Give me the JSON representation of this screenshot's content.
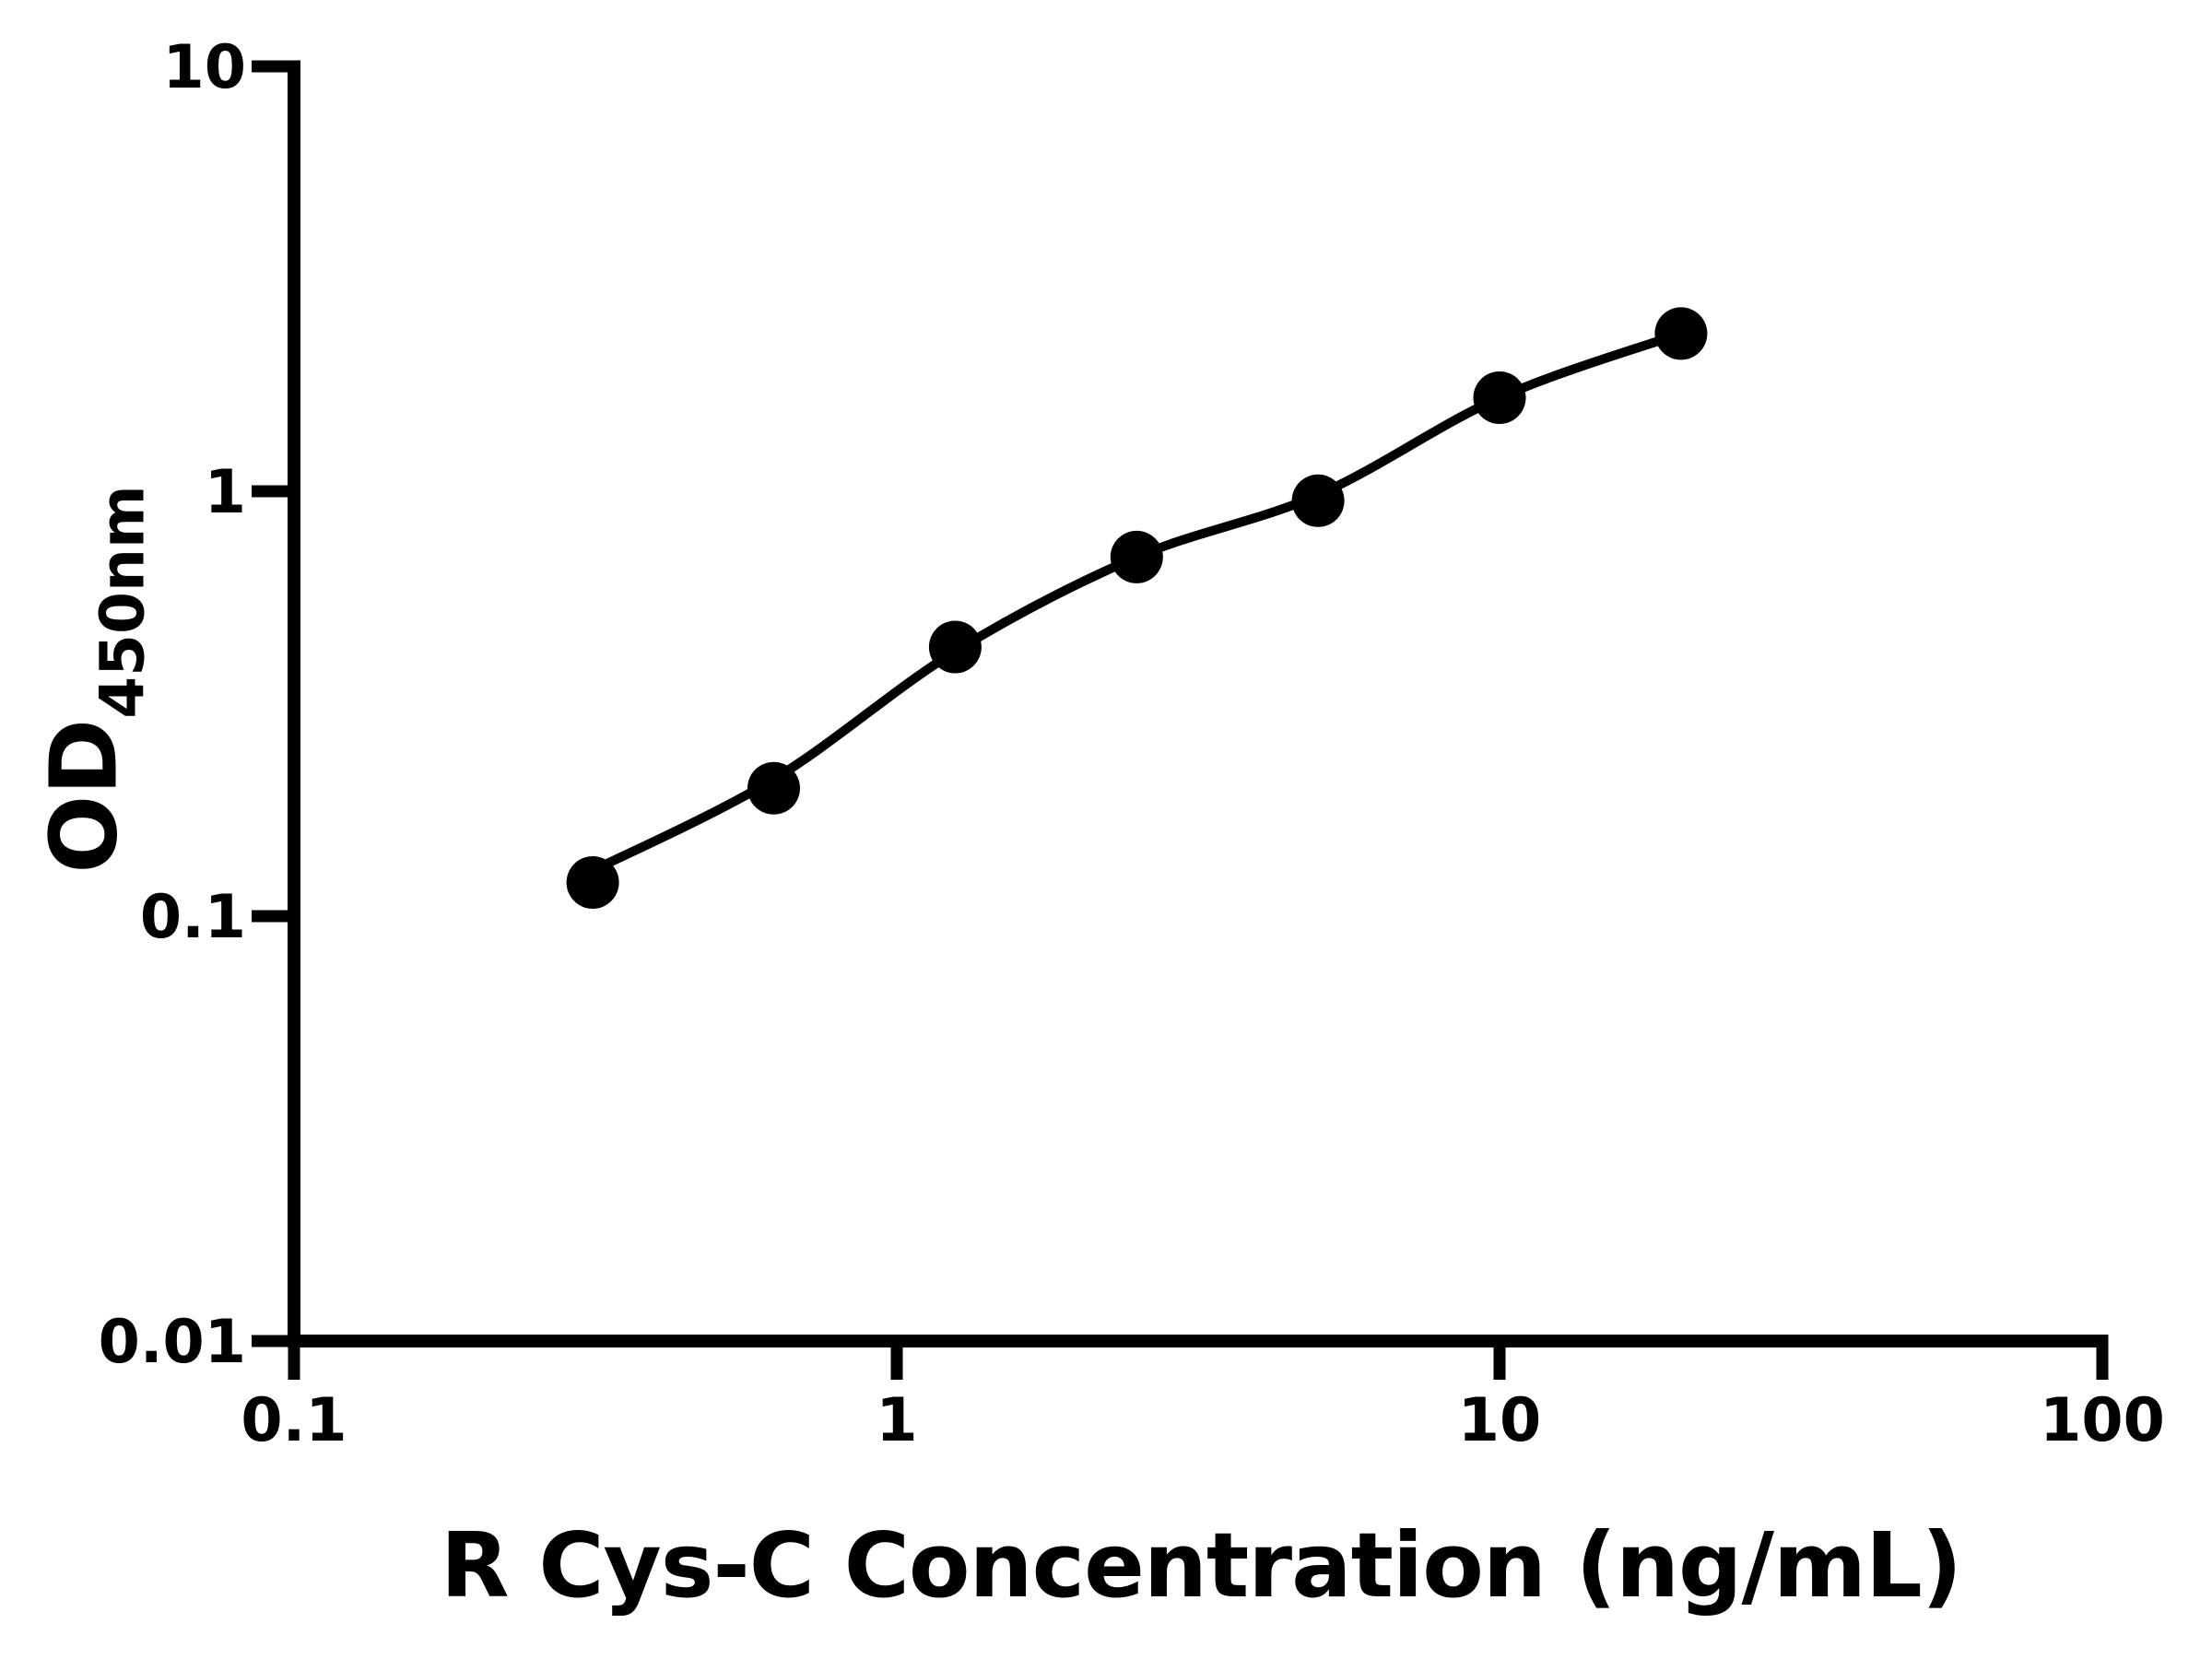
{
  "figure": {
    "background_color": "#ffffff",
    "ink_color": "#000000"
  },
  "chart_data": {
    "type": "scatter",
    "title": "",
    "xlabel": "R Cys-C Concentration (ng/mL)",
    "ylabel": "OD450nm",
    "ylabel_main": "OD",
    "ylabel_sub": "450nm",
    "x_scale": "log10",
    "y_scale": "log10",
    "xlim": [
      0.1,
      100
    ],
    "ylim": [
      0.01,
      10
    ],
    "x_ticks": [
      0.1,
      1,
      10,
      100
    ],
    "x_tick_labels": [
      "0.1",
      "1",
      "10",
      "100"
    ],
    "y_ticks": [
      0.01,
      0.1,
      1,
      10
    ],
    "y_tick_labels": [
      "0.01",
      "0.1",
      "1",
      "10"
    ],
    "grid": false,
    "legend_position": "none",
    "series": [
      {
        "name": "standard-points",
        "kind": "scatter",
        "marker": "filled-circle",
        "color": "#000000",
        "x": [
          0.313,
          0.625,
          1.25,
          2.5,
          5,
          10,
          20
        ],
        "y": [
          0.12,
          0.2,
          0.43,
          0.7,
          0.95,
          1.66,
          2.35
        ]
      },
      {
        "name": "fitted-curve",
        "kind": "line",
        "color": "#000000",
        "x": [
          0.313,
          0.625,
          1.25,
          2.5,
          5,
          10,
          20
        ],
        "y": [
          0.128,
          0.21,
          0.42,
          0.7,
          0.98,
          1.66,
          2.35
        ]
      }
    ]
  }
}
